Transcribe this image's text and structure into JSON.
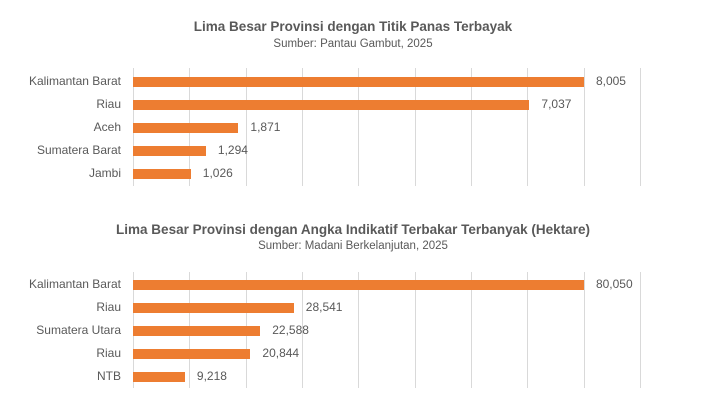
{
  "chart_data": [
    {
      "type": "bar",
      "orientation": "horizontal",
      "title": "Lima Besar Provinsi dengan Titik Panas Terbayak",
      "subtitle": "Sumber: Pantau Gambut, 2025",
      "categories": [
        "Kalimantan Barat",
        "Riau",
        "Aceh",
        "Sumatera Barat",
        "Jambi"
      ],
      "values": [
        8005,
        7037,
        1871,
        1294,
        1026
      ],
      "value_labels": [
        "8,005",
        "7,037",
        "1,871",
        "1,294",
        "1,026"
      ],
      "xlabel": "",
      "ylabel": "",
      "xlim": [
        0,
        9000
      ],
      "grid_step": 1000,
      "grid": true,
      "legend": null,
      "bar_color": "#ed7d31"
    },
    {
      "type": "bar",
      "orientation": "horizontal",
      "title": "Lima Besar Provinsi dengan Angka Indikatif Terbakar Terbanyak (Hektare)",
      "subtitle": "Sumber: Madani Berkelanjutan, 2025",
      "categories": [
        "Kalimantan Barat",
        "Riau",
        "Sumatera Utara",
        "Riau",
        "NTB"
      ],
      "values": [
        80050,
        28541,
        22588,
        20844,
        9218
      ],
      "value_labels": [
        "80,050",
        "28,541",
        "22,588",
        "20,844",
        "9,218"
      ],
      "xlabel": "",
      "ylabel": "",
      "xlim": [
        0,
        90000
      ],
      "grid_step": 10000,
      "grid": true,
      "legend": null,
      "bar_color": "#ed7d31"
    }
  ]
}
